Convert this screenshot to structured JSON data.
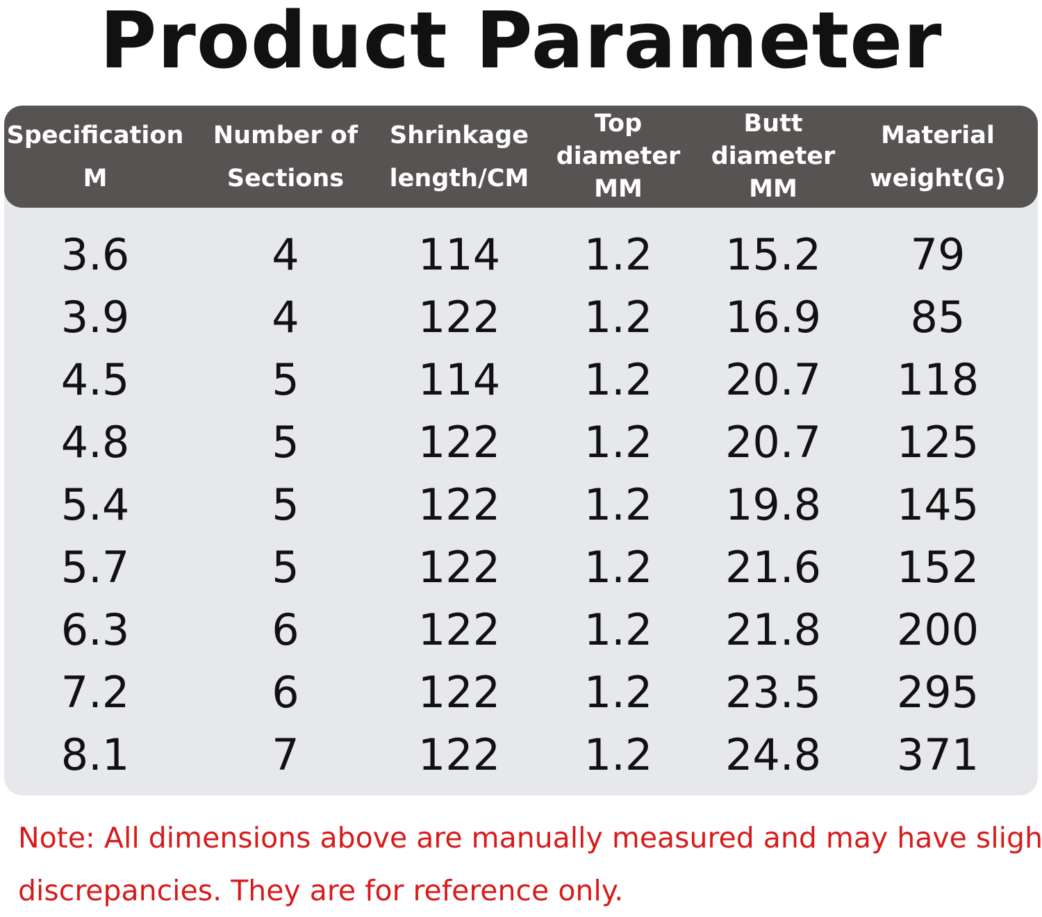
{
  "title": "Product Parameter",
  "table": {
    "headers": [
      {
        "lines": [
          "Specification",
          "M"
        ]
      },
      {
        "lines": [
          "Number of",
          "Sections"
        ]
      },
      {
        "lines": [
          "Shrinkage",
          "length/CM"
        ]
      },
      {
        "lines": [
          "Top",
          "diameter",
          "MM"
        ]
      },
      {
        "lines": [
          "Butt",
          "diameter",
          "MM"
        ]
      },
      {
        "lines": [
          "Material",
          "weight(G)"
        ]
      }
    ],
    "rows": [
      [
        "3.6",
        "4",
        "114",
        "1.2",
        "15.2",
        "79"
      ],
      [
        "3.9",
        "4",
        "122",
        "1.2",
        "16.9",
        "85"
      ],
      [
        "4.5",
        "5",
        "114",
        "1.2",
        "20.7",
        "118"
      ],
      [
        "4.8",
        "5",
        "122",
        "1.2",
        "20.7",
        "125"
      ],
      [
        "5.4",
        "5",
        "122",
        "1.2",
        "19.8",
        "145"
      ],
      [
        "5.7",
        "5",
        "122",
        "1.2",
        "21.6",
        "152"
      ],
      [
        "6.3",
        "6",
        "122",
        "1.2",
        "21.8",
        "200"
      ],
      [
        "7.2",
        "6",
        "122",
        "1.2",
        "23.5",
        "295"
      ],
      [
        "8.1",
        "7",
        "122",
        "1.2",
        "24.8",
        "371"
      ]
    ]
  },
  "note": {
    "line1": "Note: All dimensions above are manually measured and may have slight",
    "line2": "discrepancies. They are for reference only."
  },
  "colors": {
    "header_background": "#575352",
    "table_background": "#e7e8ec",
    "note_text": "#d91a1a"
  }
}
